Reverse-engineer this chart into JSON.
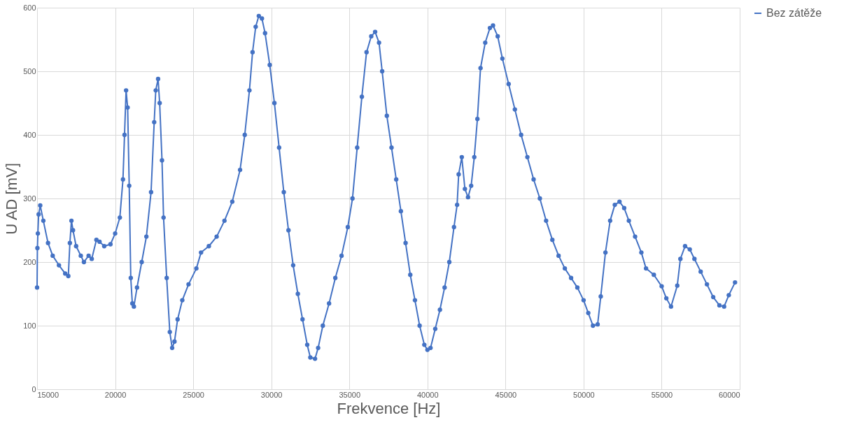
{
  "chart_data": {
    "type": "line",
    "xlabel": "Frekvence [Hz]",
    "ylabel": "U AD [mV]",
    "x": [
      15000,
      15020,
      15050,
      15100,
      15200,
      15400,
      15700,
      16000,
      16400,
      16800,
      17000,
      17100,
      17200,
      17300,
      17500,
      17800,
      18000,
      18300,
      18500,
      18800,
      19000,
      19300,
      19700,
      20000,
      20300,
      20500,
      20600,
      20700,
      20800,
      20900,
      21000,
      21100,
      21200,
      21400,
      21700,
      22000,
      22300,
      22500,
      22600,
      22750,
      22850,
      23000,
      23100,
      23300,
      23500,
      23650,
      23800,
      24000,
      24300,
      24700,
      25200,
      25500,
      26000,
      26500,
      27000,
      27500,
      28000,
      28300,
      28600,
      28800,
      29000,
      29200,
      29400,
      29600,
      29900,
      30200,
      30500,
      30800,
      31100,
      31400,
      31700,
      32000,
      32300,
      32500,
      32800,
      33000,
      33300,
      33700,
      34100,
      34500,
      34900,
      35200,
      35500,
      35800,
      36100,
      36400,
      36650,
      36900,
      37100,
      37400,
      37700,
      38000,
      38300,
      38600,
      38900,
      39200,
      39500,
      39800,
      40000,
      40200,
      40500,
      40800,
      41100,
      41400,
      41700,
      41900,
      42000,
      42200,
      42400,
      42600,
      42800,
      43000,
      43200,
      43400,
      43700,
      44000,
      44200,
      44500,
      44800,
      45200,
      45600,
      46000,
      46400,
      46800,
      47200,
      47600,
      48000,
      48400,
      48800,
      49200,
      49600,
      50000,
      50300,
      50600,
      50900,
      51100,
      51400,
      51700,
      52000,
      52300,
      52600,
      52900,
      53300,
      53700,
      54000,
      54500,
      55000,
      55300,
      55600,
      56000,
      56200,
      56500,
      56800,
      57100,
      57500,
      57900,
      58300,
      58700,
      59000,
      59300,
      59700
    ],
    "series": [
      {
        "name": "Bez zátěže",
        "color": "#4472c4",
        "values": [
          160,
          222,
          245,
          275,
          289,
          265,
          230,
          210,
          195,
          182,
          178,
          230,
          265,
          250,
          225,
          210,
          200,
          210,
          205,
          235,
          232,
          225,
          228,
          245,
          270,
          330,
          400,
          470,
          443,
          320,
          175,
          135,
          130,
          160,
          200,
          240,
          310,
          420,
          470,
          488,
          450,
          360,
          270,
          175,
          90,
          65,
          75,
          110,
          140,
          165,
          190,
          215,
          225,
          240,
          265,
          295,
          345,
          400,
          470,
          530,
          570,
          587,
          583,
          560,
          510,
          450,
          380,
          310,
          250,
          195,
          150,
          110,
          70,
          50,
          48,
          65,
          100,
          135,
          175,
          210,
          255,
          300,
          380,
          460,
          530,
          555,
          562,
          545,
          500,
          430,
          380,
          330,
          280,
          230,
          180,
          140,
          100,
          70,
          62,
          65,
          95,
          125,
          160,
          200,
          255,
          290,
          338,
          365,
          315,
          302,
          320,
          365,
          425,
          505,
          545,
          568,
          572,
          555,
          520,
          480,
          440,
          400,
          365,
          330,
          300,
          265,
          235,
          210,
          190,
          175,
          160,
          140,
          120,
          100,
          102,
          146,
          215,
          265,
          290,
          295,
          285,
          265,
          240,
          215,
          190,
          180,
          162,
          143,
          130,
          163,
          205,
          225,
          220,
          205,
          185,
          165,
          145,
          132,
          130,
          148,
          168
        ]
      }
    ],
    "xlim": [
      15000,
      60000
    ],
    "xticks": [
      15000,
      20000,
      25000,
      30000,
      35000,
      40000,
      45000,
      50000,
      55000,
      60000
    ],
    "ylim": [
      0,
      600
    ],
    "yticks": [
      0,
      100,
      200,
      300,
      400,
      500,
      600
    ],
    "grid": true,
    "legend": "right",
    "marker": "circle",
    "line_style": "solid"
  }
}
